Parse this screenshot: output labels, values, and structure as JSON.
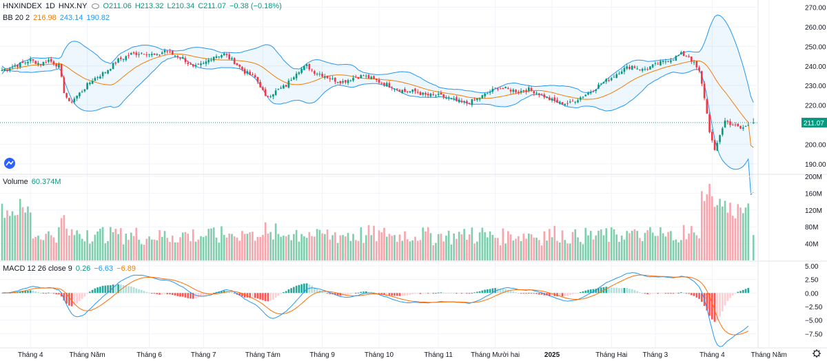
{
  "header": {
    "symbol": "HNXINDEX",
    "interval": "1D",
    "exchange": "HNX.NY",
    "open": "O211.06",
    "high": "H213.32",
    "low": "L210.34",
    "close": "C211.07",
    "change": "−0.38 (−0.18%)"
  },
  "bb_legend": {
    "label": "BB 20 2",
    "basis": "216.98",
    "upper": "243.14",
    "lower": "190.82"
  },
  "volume_legend": {
    "label": "Volume",
    "value": "60.374M"
  },
  "macd_legend": {
    "label": "MACD 12 26 close 9",
    "hist": "0.26",
    "macd": "−6.63",
    "signal": "−6.89"
  },
  "colors": {
    "up": "#089981",
    "down": "#f23645",
    "up_vol": "#7fcfae",
    "down_vol": "#f7a6ad",
    "band": "#2196f3",
    "basis": "#f57c00",
    "macd": "#2196f3",
    "signal": "#ff6d00"
  },
  "chart_data": {
    "type": "candlestick",
    "title": "HNXINDEX · 1D · HNX.NY",
    "last_price_label": "211.07",
    "x_ticks": [
      {
        "i": 11,
        "label": "Tháng 4"
      },
      {
        "i": 33,
        "label": "Tháng Năm"
      },
      {
        "i": 57,
        "label": "Tháng 6"
      },
      {
        "i": 78,
        "label": "Tháng 7"
      },
      {
        "i": 101,
        "label": "Tháng Tám"
      },
      {
        "i": 124,
        "label": "Tháng 9"
      },
      {
        "i": 146,
        "label": "Tháng 10"
      },
      {
        "i": 169,
        "label": "Tháng 11"
      },
      {
        "i": 191,
        "label": "Tháng Mười hai"
      },
      {
        "i": 213,
        "label": "2025"
      },
      {
        "i": 236,
        "label": "Tháng Hai"
      },
      {
        "i": 253,
        "label": "Tháng 3"
      },
      {
        "i": 275,
        "label": "Tháng 4"
      },
      {
        "i": 297,
        "label": "Tháng Năm"
      }
    ],
    "price": {
      "ylim": [
        185,
        273
      ],
      "ticks": [
        "270.00",
        "260.00",
        "250.00",
        "240.00",
        "230.00",
        "220.00",
        "210.00",
        "200.00",
        "190.00"
      ],
      "keys": [
        [
          0,
          238
        ],
        [
          5,
          240
        ],
        [
          11,
          243
        ],
        [
          15,
          241
        ],
        [
          18,
          243
        ],
        [
          22,
          240
        ],
        [
          24,
          227
        ],
        [
          26,
          221
        ],
        [
          30,
          226
        ],
        [
          35,
          233
        ],
        [
          40,
          237
        ],
        [
          45,
          243
        ],
        [
          50,
          246
        ],
        [
          55,
          247
        ],
        [
          60,
          245
        ],
        [
          63,
          248
        ],
        [
          66,
          246
        ],
        [
          70,
          244
        ],
        [
          74,
          239
        ],
        [
          78,
          241
        ],
        [
          82,
          245
        ],
        [
          86,
          246
        ],
        [
          90,
          242
        ],
        [
          94,
          237
        ],
        [
          98,
          234
        ],
        [
          100,
          230
        ],
        [
          102,
          224
        ],
        [
          106,
          227
        ],
        [
          110,
          230
        ],
        [
          114,
          237
        ],
        [
          118,
          240
        ],
        [
          121,
          237
        ],
        [
          125,
          235
        ],
        [
          128,
          233
        ],
        [
          132,
          232
        ],
        [
          136,
          234
        ],
        [
          140,
          235
        ],
        [
          144,
          233
        ],
        [
          148,
          231
        ],
        [
          152,
          229
        ],
        [
          156,
          227
        ],
        [
          160,
          227
        ],
        [
          164,
          225
        ],
        [
          168,
          225
        ],
        [
          172,
          224
        ],
        [
          176,
          222
        ],
        [
          180,
          221
        ],
        [
          184,
          223
        ],
        [
          188,
          226
        ],
        [
          192,
          229
        ],
        [
          196,
          228
        ],
        [
          200,
          227
        ],
        [
          204,
          228
        ],
        [
          208,
          226
        ],
        [
          212,
          223
        ],
        [
          216,
          221
        ],
        [
          220,
          221
        ],
        [
          224,
          224
        ],
        [
          228,
          227
        ],
        [
          232,
          231
        ],
        [
          236,
          234
        ],
        [
          240,
          238
        ],
        [
          244,
          240
        ],
        [
          248,
          238
        ],
        [
          252,
          240
        ],
        [
          256,
          242
        ],
        [
          260,
          244
        ],
        [
          263,
          246
        ],
        [
          266,
          245
        ],
        [
          268,
          241
        ],
        [
          270,
          237
        ],
        [
          272,
          224
        ],
        [
          274,
          207
        ],
        [
          276,
          196
        ],
        [
          278,
          205
        ],
        [
          280,
          212
        ],
        [
          283,
          210
        ],
        [
          286,
          208
        ],
        [
          288,
          209
        ],
        [
          290,
          211.07
        ]
      ]
    },
    "volume": {
      "ylim": [
        0,
        200
      ],
      "unit": "M",
      "ticks": [
        "200M",
        "160M",
        "120M",
        "80M",
        "40M"
      ],
      "last_value": 60.374
    },
    "macd": {
      "ylim": [
        -9.5,
        5.5
      ],
      "ticks": [
        "5.00",
        "2.50",
        "0.00",
        "−2.50",
        "−5.00",
        "−7.50"
      ],
      "last": {
        "macd": -6.63,
        "signal": -6.89,
        "hist": 0.26
      }
    },
    "bollinger": {
      "period": 20,
      "mult": 2,
      "basis": 216.98,
      "upper": 243.14,
      "lower": 190.82
    }
  }
}
